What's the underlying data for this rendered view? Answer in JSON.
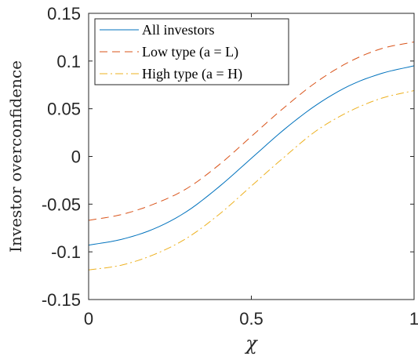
{
  "chart_data": {
    "type": "line",
    "xlabel": "χ",
    "ylabel": "Investor overconfidence",
    "xlim": [
      0,
      1
    ],
    "ylim": [
      -0.15,
      0.15
    ],
    "xticks": [
      0,
      0.5,
      1
    ],
    "xtick_labels": [
      "0",
      "0.5",
      "1"
    ],
    "yticks": [
      -0.15,
      -0.1,
      -0.05,
      0,
      0.05,
      0.1,
      0.15
    ],
    "ytick_labels": [
      "-0.15",
      "-0.1",
      "-0.05",
      "0",
      "0.05",
      "0.1",
      "0.15"
    ],
    "grid": false,
    "legend_position": "top-left",
    "x": [
      0,
      0.1,
      0.2,
      0.3,
      0.4,
      0.5,
      0.6,
      0.7,
      0.8,
      0.9,
      1.0
    ],
    "series": [
      {
        "name": "All investors",
        "color": "#0072bd",
        "dash": "solid",
        "values": [
          -0.093,
          -0.087,
          -0.076,
          -0.058,
          -0.032,
          -0.002,
          0.028,
          0.054,
          0.074,
          0.087,
          0.095
        ]
      },
      {
        "name": "Low type (a = L)",
        "color": "#d95319",
        "dash": "dashed",
        "values": [
          -0.067,
          -0.061,
          -0.05,
          -0.034,
          -0.009,
          0.021,
          0.051,
          0.078,
          0.099,
          0.113,
          0.12
        ]
      },
      {
        "name": "High type (a = H)",
        "color": "#edb120",
        "dash": "dashdot",
        "values": [
          -0.119,
          -0.114,
          -0.103,
          -0.086,
          -0.061,
          -0.031,
          -0.001,
          0.027,
          0.047,
          0.061,
          0.069
        ]
      }
    ]
  }
}
